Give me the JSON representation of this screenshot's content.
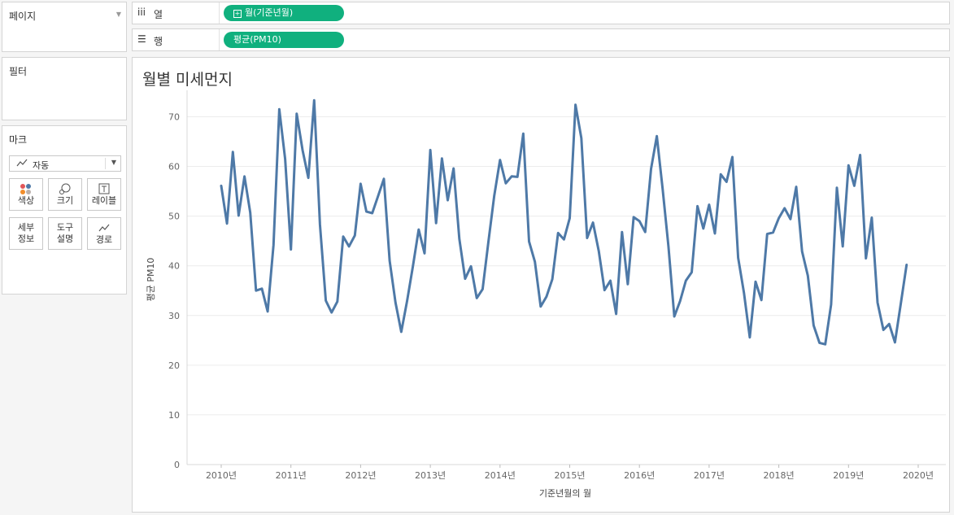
{
  "panels": {
    "pages_label": "페이지",
    "filters_label": "필터",
    "marks_label": "마크",
    "mark_type": "자동",
    "mark_buttons": [
      "색상",
      "크기",
      "레이블",
      "세부\n정보",
      "도구\n설명",
      "경로"
    ]
  },
  "shelves": {
    "columns_label": "열",
    "columns_pill": "월(기준년월)",
    "rows_label": "행",
    "rows_pill": "평균(PM10)"
  },
  "chart_data": {
    "type": "line",
    "title": "월별 미세먼지",
    "xlabel": "기준년월의 월",
    "ylabel": "평균 PM10",
    "ylim": [
      0,
      75
    ],
    "yticks": [
      0,
      10,
      20,
      30,
      40,
      50,
      60,
      70
    ],
    "xticks": [
      "2010년",
      "2011년",
      "2012년",
      "2013년",
      "2014년",
      "2015년",
      "2016년",
      "2017년",
      "2018년",
      "2019년",
      "2020년"
    ],
    "x_start": "2010-01",
    "x_end": "2019-11",
    "line_color": "#4e79a7",
    "series": [
      {
        "values": [
          56.1,
          48.5,
          62.9,
          50.1,
          58.0,
          50.7,
          35.0,
          35.4,
          30.8,
          44.2,
          71.5,
          61.5,
          43.3,
          70.6,
          63.3,
          57.7,
          73.3,
          48.3,
          33.0,
          30.6,
          32.8,
          45.9,
          43.9,
          46.1,
          56.5,
          50.9,
          50.6,
          54.0,
          57.5,
          41.0,
          32.6,
          26.7,
          32.9,
          39.9,
          47.3,
          42.5,
          63.3,
          48.6,
          61.6,
          53.2,
          59.6,
          45.4,
          37.4,
          39.9,
          33.5,
          35.3,
          44.8,
          54.1,
          61.3,
          56.6,
          58.0,
          57.9,
          66.6,
          44.9,
          40.8,
          31.8,
          33.8,
          37.3,
          46.6,
          45.3,
          49.6,
          72.4,
          65.7,
          45.6,
          48.7,
          43.0,
          35.1,
          37.0,
          30.3,
          46.8,
          36.3,
          49.8,
          49.0,
          46.8,
          59.5,
          66.1,
          55.4,
          43.9,
          29.8,
          32.9,
          37.0,
          38.7,
          52.0,
          47.5,
          52.3,
          46.5,
          58.4,
          56.9,
          61.9,
          41.6,
          34.5,
          25.6,
          36.8,
          33.1,
          46.4,
          46.7,
          49.6,
          51.6,
          49.4,
          55.9,
          42.9,
          38.0,
          28.0,
          24.5,
          24.2,
          32.2,
          55.7,
          43.9,
          60.2,
          56.1,
          62.3,
          41.5,
          49.7,
          32.6,
          27.1,
          28.3,
          24.6,
          32.4,
          40.2
        ]
      }
    ]
  }
}
